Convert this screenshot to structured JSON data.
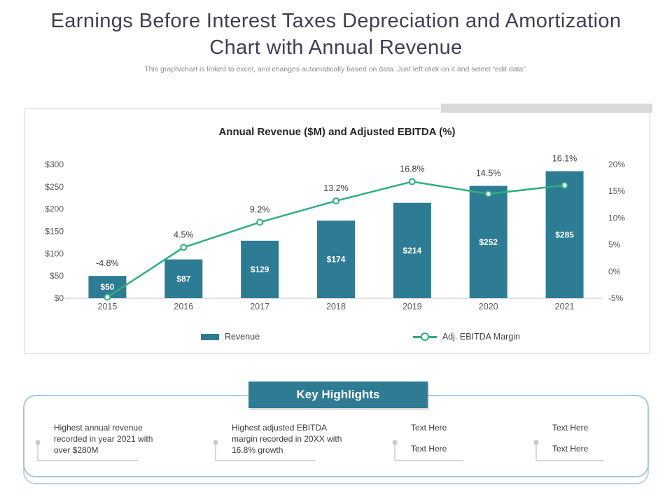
{
  "page": {
    "title": "Earnings Before Interest Taxes Depreciation and Amortization Chart with Annual Revenue",
    "subtitle": "This graph/chart is linked to excel, and changes automatically based on data. Just left click on it and select “edit data”."
  },
  "chart_data": {
    "type": "bar",
    "title": "Annual Revenue ($M) and Adjusted EBITDA (%)",
    "categories": [
      "2015",
      "2016",
      "2017",
      "2018",
      "2019",
      "2020",
      "2021"
    ],
    "series": [
      {
        "name": "Revenue",
        "type": "bar",
        "axis": "left",
        "values": [
          50,
          87,
          129,
          174,
          214,
          252,
          285
        ],
        "labels": [
          "$50",
          "$87",
          "$129",
          "$174",
          "$214",
          "$252",
          "$285"
        ],
        "color": "#2e7b94"
      },
      {
        "name": "Adj. EBITDA Margin",
        "type": "line",
        "axis": "right",
        "values": [
          -4.8,
          4.5,
          9.2,
          13.2,
          16.8,
          14.5,
          16.1
        ],
        "labels": [
          "-4.8%",
          "4.5%",
          "9.2%",
          "13.2%",
          "16.8%",
          "14.5%",
          "16.1%"
        ],
        "color": "#2fae7e"
      }
    ],
    "left_axis": {
      "min": 0,
      "max": 300,
      "ticks": [
        "$300",
        "$250",
        "$200",
        "$150",
        "$100",
        "$50",
        "$0"
      ]
    },
    "right_axis": {
      "min": -5,
      "max": 20,
      "ticks": [
        "20%",
        "15%",
        "10%",
        "5%",
        "0%",
        "-5%"
      ]
    },
    "legend_position": "bottom",
    "grid": false
  },
  "highlights": {
    "header": "Key Highlights",
    "items": [
      {
        "lines": [
          "Highest annual revenue recorded in year 2021 with over $280M"
        ]
      },
      {
        "lines": [
          "Highest adjusted EBITDA margin recorded in 20XX with 16.8% growth"
        ]
      },
      {
        "lines": [
          "Text Here",
          "Text Here"
        ]
      },
      {
        "lines": [
          "Text Here",
          "Text Here"
        ]
      }
    ]
  },
  "colors": {
    "bar": "#2e7b94",
    "line": "#2fae7e",
    "highlight_header_bg": "#2e7b94",
    "highlight_border": "#a9c7de",
    "decorative_strip": "#d9d9d9"
  }
}
